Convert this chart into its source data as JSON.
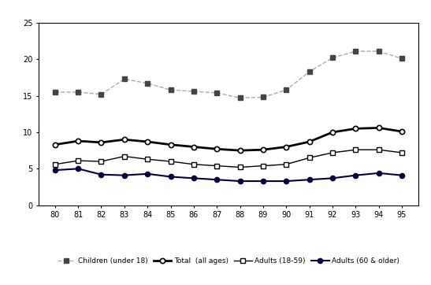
{
  "years": [
    80,
    81,
    82,
    83,
    84,
    85,
    86,
    87,
    88,
    89,
    90,
    91,
    92,
    93,
    94,
    95
  ],
  "children": [
    15.5,
    15.5,
    15.2,
    17.3,
    16.7,
    15.8,
    15.6,
    15.4,
    14.7,
    14.8,
    15.8,
    18.3,
    20.2,
    21.1,
    21.1,
    20.1
  ],
  "total": [
    8.3,
    8.8,
    8.6,
    9.0,
    8.7,
    8.3,
    8.0,
    7.7,
    7.5,
    7.6,
    8.0,
    8.7,
    10.0,
    10.5,
    10.6,
    10.1
  ],
  "adults_18_59": [
    5.6,
    6.1,
    6.0,
    6.7,
    6.3,
    6.0,
    5.6,
    5.4,
    5.2,
    5.4,
    5.6,
    6.5,
    7.2,
    7.6,
    7.6,
    7.2
  ],
  "adults_60plus": [
    4.8,
    5.0,
    4.2,
    4.1,
    4.3,
    3.9,
    3.7,
    3.5,
    3.3,
    3.3,
    3.3,
    3.5,
    3.7,
    4.1,
    4.4,
    4.1
  ],
  "ylim": [
    0,
    25
  ],
  "yticks": [
    0,
    5,
    10,
    15,
    20,
    25
  ],
  "xlim_min": 79.3,
  "xlim_max": 95.7,
  "children_color": "#aaaaaa",
  "children_linewidth": 1.0,
  "children_linestyle": "--",
  "children_marker": "s",
  "children_markerfacecolor": "#444444",
  "children_markersize": 4.5,
  "total_color": "#000000",
  "total_linewidth": 2.0,
  "total_marker": "o",
  "total_markersize": 4.5,
  "adults_18_59_color": "#000000",
  "adults_18_59_linewidth": 1.0,
  "adults_18_59_marker": "s",
  "adults_18_59_markersize": 4.5,
  "adults_60plus_color": "#000040",
  "adults_60plus_linewidth": 1.5,
  "adults_60plus_marker": "o",
  "adults_60plus_markersize": 4.5,
  "tick_fontsize": 7,
  "legend_labels": [
    "Children (under 18)",
    "Total  (all ages)",
    "Adults (18-59)",
    "Adults (60 & older)"
  ],
  "legend_fontsize": 6.5
}
